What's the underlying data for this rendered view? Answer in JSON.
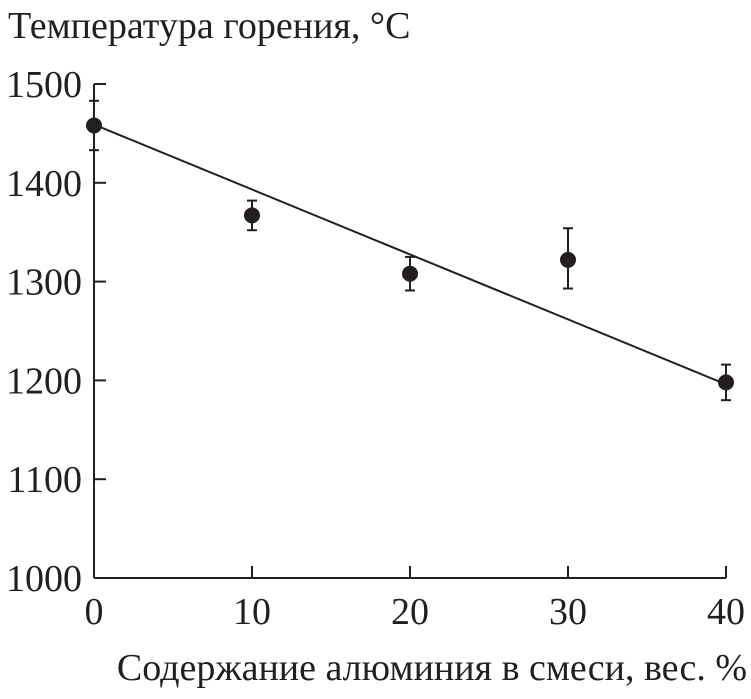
{
  "chart_data": {
    "type": "scatter",
    "title": "",
    "ylabel": "Температура горения, °C",
    "xlabel": "Содержание алюминия в смеси, вес. %",
    "xlim": [
      0,
      40
    ],
    "ylim": [
      1000,
      1500
    ],
    "x_ticks": [
      0,
      10,
      20,
      30,
      40
    ],
    "y_ticks": [
      1000,
      1100,
      1200,
      1300,
      1400,
      1500
    ],
    "x_tick_labels": [
      "0",
      "10",
      "20",
      "30",
      "40"
    ],
    "y_tick_labels": [
      "1000",
      "1100",
      "1200",
      "1300",
      "1400",
      "1500"
    ],
    "grid": false,
    "series": [
      {
        "x": [
          0,
          10,
          20,
          30,
          40
        ],
        "y": [
          1458,
          1367,
          1308,
          1322,
          1198
        ],
        "y_error_lower": [
          25,
          15,
          17,
          29,
          18
        ],
        "y_error_upper": [
          25,
          15,
          17,
          32,
          18
        ]
      }
    ],
    "fit_line": {
      "x": [
        0,
        40
      ],
      "y": [
        1459,
        1196
      ]
    },
    "colors": {
      "ink": "#231f20",
      "background": "#ffffff"
    }
  }
}
